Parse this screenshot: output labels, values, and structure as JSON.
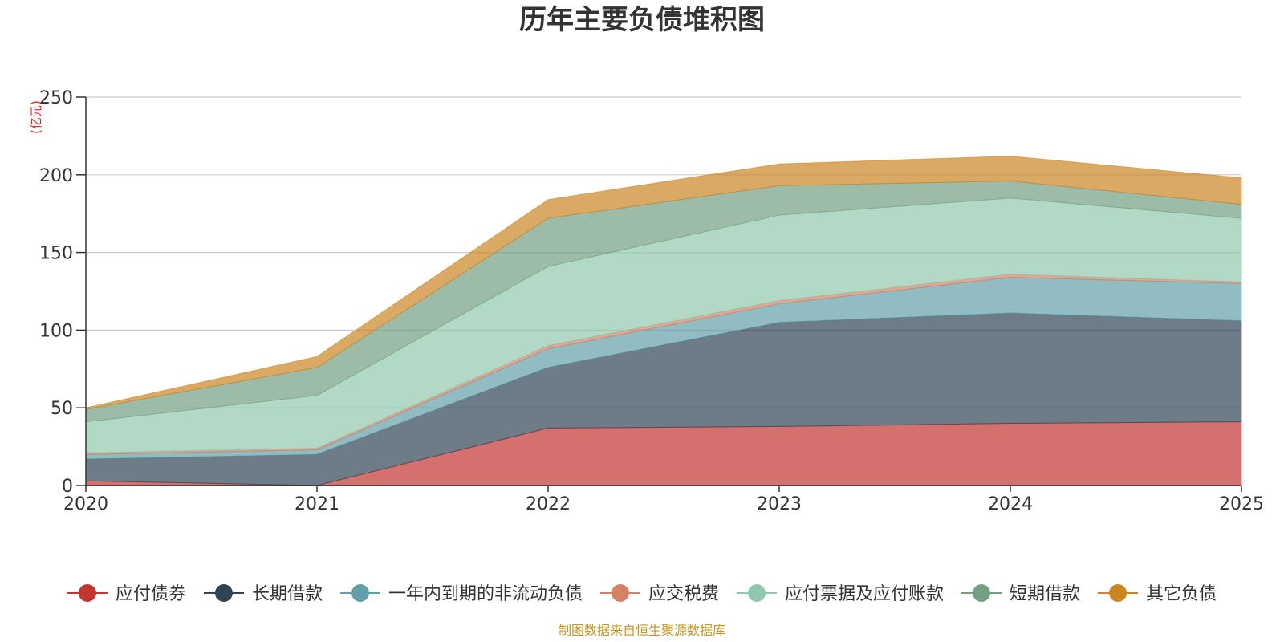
{
  "chart_data": {
    "type": "area",
    "stacked": true,
    "title": "历年主要负债堆积图",
    "unit_label": "(亿元)",
    "categories": [
      "2020",
      "2021",
      "2022",
      "2023",
      "2024",
      "2025"
    ],
    "y_ticks": [
      "0",
      "50",
      "100",
      "150",
      "200",
      "250"
    ],
    "ylim": [
      0,
      250
    ],
    "grid": true,
    "legend_position": "bottom",
    "series": [
      {
        "name": "应付债券",
        "color": "#c23531",
        "values": [
          3,
          0,
          37,
          38,
          40,
          41
        ]
      },
      {
        "name": "长期借款",
        "color": "#2f4554",
        "values": [
          14,
          20,
          39,
          67,
          71,
          65
        ]
      },
      {
        "name": "一年内到期的非流动负债",
        "color": "#61a0a8",
        "values": [
          3,
          3,
          12,
          12,
          23,
          24
        ]
      },
      {
        "name": "应交税费",
        "color": "#d48265",
        "values": [
          1,
          1,
          2,
          2,
          2,
          1
        ]
      },
      {
        "name": "应付票据及应付账款",
        "color": "#91c7ae",
        "values": [
          20,
          34,
          51,
          55,
          49,
          41
        ]
      },
      {
        "name": "短期借款",
        "color": "#749f83",
        "values": [
          8,
          18,
          31,
          19,
          11,
          9
        ]
      },
      {
        "name": "其它负债",
        "color": "#ca8622",
        "values": [
          1,
          7,
          12,
          14,
          16,
          17
        ]
      }
    ],
    "source_note": "制图数据来自恒生聚源数据库",
    "source_color": "#c8961e",
    "unit_color": "#e8201e"
  }
}
